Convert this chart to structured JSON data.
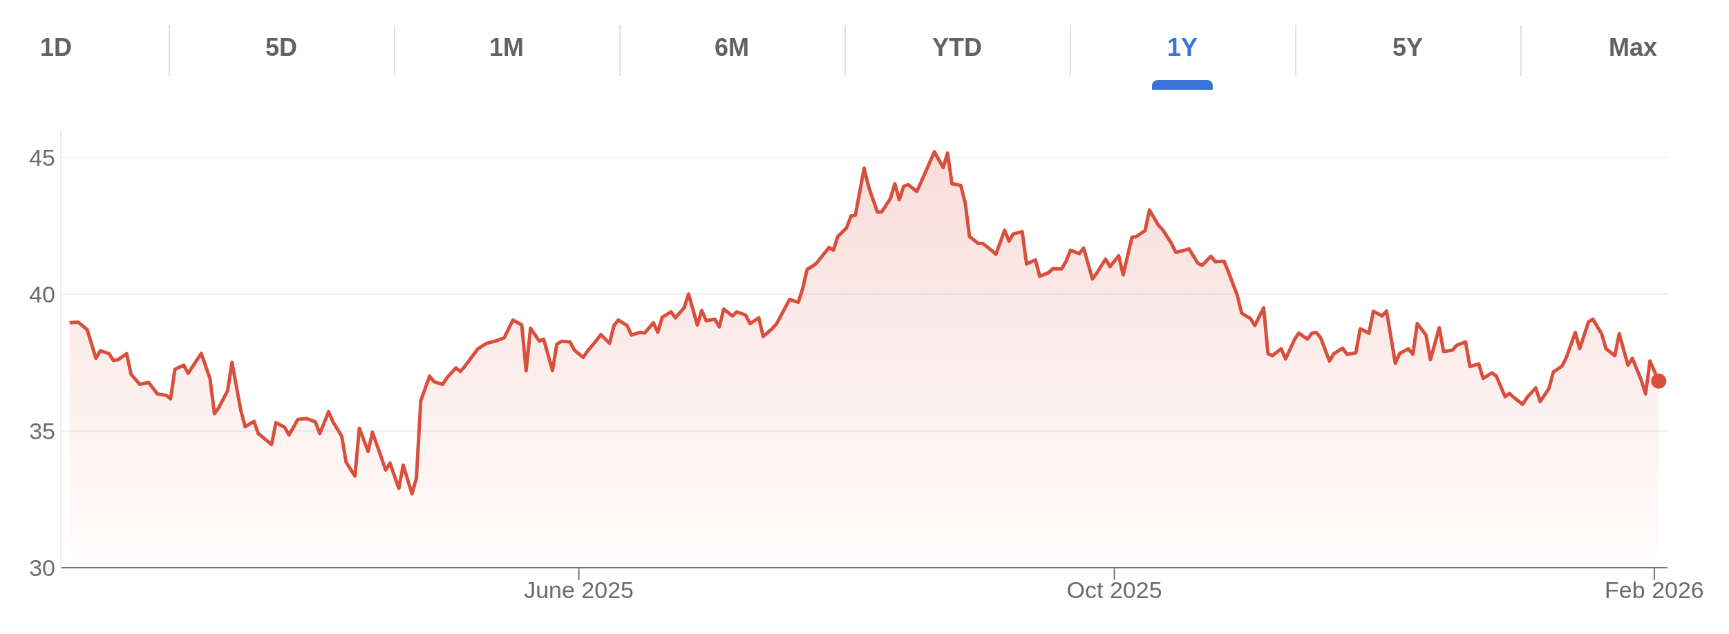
{
  "chart_data": {
    "type": "area",
    "annotations": [
      "1D",
      "5D",
      "1M",
      "6M",
      "YTD",
      "1Y",
      "5Y",
      "Max"
    ],
    "x": [
      "2025-02-05",
      "2025-02-07",
      "2025-02-09",
      "2025-02-11",
      "2025-02-12",
      "2025-02-14",
      "2025-02-15",
      "2025-02-16",
      "2025-02-18",
      "2025-02-19",
      "2025-02-21",
      "2025-02-23",
      "2025-02-25",
      "2025-02-27",
      "2025-02-28",
      "2025-03-01",
      "2025-03-03",
      "2025-03-04",
      "2025-03-07",
      "2025-03-09",
      "2025-03-10",
      "2025-03-11",
      "2025-03-13",
      "2025-03-14",
      "2025-03-16",
      "2025-03-17",
      "2025-03-19",
      "2025-03-20",
      "2025-03-21",
      "2025-03-23",
      "2025-03-24",
      "2025-03-26",
      "2025-03-27",
      "2025-03-29",
      "2025-03-31",
      "2025-04-02",
      "2025-04-03",
      "2025-04-05",
      "2025-04-06",
      "2025-04-08",
      "2025-04-09",
      "2025-04-11",
      "2025-04-12",
      "2025-04-14",
      "2025-04-15",
      "2025-04-18",
      "2025-04-19",
      "2025-04-21",
      "2025-04-22",
      "2025-04-24",
      "2025-04-25",
      "2025-04-26",
      "2025-04-28",
      "2025-04-29",
      "2025-05-01",
      "2025-05-02",
      "2025-05-04",
      "2025-05-05",
      "2025-05-06",
      "2025-05-09",
      "2025-05-11",
      "2025-05-13",
      "2025-05-15",
      "2025-05-17",
      "2025-05-19",
      "2025-05-20",
      "2025-05-21",
      "2025-05-23",
      "2025-05-24",
      "2025-05-26",
      "2025-05-27",
      "2025-05-28",
      "2025-05-30",
      "2025-05-31",
      "2025-06-02",
      "2025-06-03",
      "2025-06-05",
      "2025-06-06",
      "2025-06-08",
      "2025-06-09",
      "2025-06-10",
      "2025-06-12",
      "2025-06-13",
      "2025-06-15",
      "2025-06-16",
      "2025-06-18",
      "2025-06-19",
      "2025-06-20",
      "2025-06-22",
      "2025-06-23",
      "2025-06-25",
      "2025-06-26",
      "2025-06-28",
      "2025-06-29",
      "2025-06-30",
      "2025-07-02",
      "2025-07-03",
      "2025-07-04",
      "2025-07-06",
      "2025-07-07",
      "2025-07-09",
      "2025-07-10",
      "2025-07-12",
      "2025-07-13",
      "2025-07-15",
      "2025-07-16",
      "2025-07-18",
      "2025-07-19",
      "2025-07-21",
      "2025-07-22",
      "2025-07-23",
      "2025-07-25",
      "2025-07-26",
      "2025-07-28",
      "2025-07-29",
      "2025-07-30",
      "2025-08-01",
      "2025-08-02",
      "2025-08-03",
      "2025-08-05",
      "2025-08-06",
      "2025-08-08",
      "2025-08-09",
      "2025-08-11",
      "2025-08-12",
      "2025-08-13",
      "2025-08-14",
      "2025-08-15",
      "2025-08-17",
      "2025-08-18",
      "2025-08-21",
      "2025-08-23",
      "2025-08-24",
      "2025-08-25",
      "2025-08-27",
      "2025-08-28",
      "2025-08-29",
      "2025-08-31",
      "2025-09-01",
      "2025-09-03",
      "2025-09-04",
      "2025-09-06",
      "2025-09-07",
      "2025-09-08",
      "2025-09-10",
      "2025-09-11",
      "2025-09-13",
      "2025-09-14",
      "2025-09-16",
      "2025-09-17",
      "2025-09-19",
      "2025-09-20",
      "2025-09-21",
      "2025-09-23",
      "2025-09-24",
      "2025-09-26",
      "2025-09-27",
      "2025-09-29",
      "2025-09-30",
      "2025-10-02",
      "2025-10-03",
      "2025-10-05",
      "2025-10-06",
      "2025-10-08",
      "2025-10-09",
      "2025-10-11",
      "2025-10-12",
      "2025-10-14",
      "2025-10-15",
      "2025-10-17",
      "2025-10-18",
      "2025-10-20",
      "2025-10-21",
      "2025-10-23",
      "2025-10-24",
      "2025-10-26",
      "2025-10-27",
      "2025-10-29",
      "2025-10-30",
      "2025-11-01",
      "2025-11-02",
      "2025-11-04",
      "2025-11-05",
      "2025-11-06",
      "2025-11-08",
      "2025-11-09",
      "2025-11-11",
      "2025-11-12",
      "2025-11-14",
      "2025-11-15",
      "2025-11-16",
      "2025-11-17",
      "2025-11-19",
      "2025-11-20",
      "2025-11-22",
      "2025-11-23",
      "2025-11-25",
      "2025-11-26",
      "2025-11-28",
      "2025-11-29",
      "2025-12-01",
      "2025-12-02",
      "2025-12-04",
      "2025-12-05",
      "2025-12-07",
      "2025-12-08",
      "2025-12-09",
      "2025-12-11",
      "2025-12-12",
      "2025-12-14",
      "2025-12-15",
      "2025-12-17",
      "2025-12-18",
      "2025-12-20",
      "2025-12-21",
      "2025-12-23",
      "2025-12-24",
      "2025-12-26",
      "2025-12-27",
      "2025-12-29",
      "2025-12-30",
      "2025-12-31",
      "2026-01-02",
      "2026-01-03",
      "2026-01-05",
      "2026-01-06",
      "2026-01-08",
      "2026-01-09",
      "2026-01-11",
      "2026-01-12",
      "2026-01-14",
      "2026-01-15",
      "2026-01-17",
      "2026-01-18",
      "2026-01-20",
      "2026-01-21",
      "2026-01-23",
      "2026-01-24",
      "2026-01-26",
      "2026-01-27",
      "2026-01-29",
      "2026-01-30",
      "2026-01-31",
      "2026-02-02"
    ],
    "values": [
      38.95,
      38.97,
      38.7,
      37.65,
      37.93,
      37.82,
      37.57,
      37.6,
      37.82,
      37.07,
      36.7,
      36.77,
      36.35,
      36.3,
      36.17,
      37.25,
      37.4,
      37.1,
      37.83,
      36.9,
      35.63,
      35.85,
      36.47,
      37.5,
      35.75,
      35.15,
      35.35,
      34.9,
      34.77,
      34.5,
      35.3,
      35.13,
      34.85,
      35.42,
      35.45,
      35.33,
      34.9,
      35.7,
      35.33,
      34.8,
      33.85,
      33.35,
      35.1,
      34.25,
      34.95,
      33.57,
      33.82,
      32.9,
      33.75,
      32.7,
      33.27,
      36.1,
      37.0,
      36.8,
      36.7,
      36.95,
      37.3,
      37.17,
      37.35,
      38.0,
      38.2,
      38.28,
      38.4,
      39.05,
      38.87,
      37.2,
      38.75,
      38.28,
      38.35,
      37.2,
      38.17,
      38.27,
      38.25,
      37.95,
      37.68,
      37.92,
      38.3,
      38.52,
      38.2,
      38.85,
      39.05,
      38.85,
      38.5,
      38.6,
      38.58,
      38.95,
      38.6,
      39.15,
      39.35,
      39.13,
      39.5,
      40.0,
      38.87,
      39.4,
      39.03,
      39.08,
      38.8,
      39.45,
      39.2,
      39.35,
      39.23,
      38.92,
      39.13,
      38.45,
      38.73,
      38.9,
      39.5,
      39.8,
      39.7,
      40.2,
      40.9,
      41.1,
      41.3,
      41.7,
      41.6,
      42.1,
      42.42,
      42.85,
      42.88,
      44.6,
      43.93,
      43.0,
      43.0,
      43.5,
      44.03,
      43.45,
      43.93,
      44.0,
      43.75,
      44.1,
      45.2,
      44.62,
      45.15,
      44.03,
      43.97,
      43.35,
      42.1,
      41.85,
      41.85,
      41.6,
      41.45,
      42.33,
      41.93,
      42.2,
      42.28,
      41.1,
      41.25,
      40.65,
      40.78,
      40.93,
      40.92,
      41.2,
      41.6,
      41.48,
      41.68,
      40.55,
      40.77,
      41.28,
      41.0,
      41.4,
      40.7,
      42.07,
      42.1,
      42.32,
      43.07,
      42.52,
      42.35,
      41.85,
      41.52,
      41.6,
      41.65,
      41.13,
      41.05,
      41.38,
      41.18,
      41.2,
      40.8,
      39.95,
      39.3,
      39.1,
      38.85,
      39.5,
      37.82,
      37.75,
      38.0,
      37.63,
      38.33,
      38.57,
      38.35,
      38.57,
      38.6,
      38.4,
      37.55,
      37.82,
      38.02,
      37.8,
      37.85,
      38.73,
      38.57,
      39.37,
      39.2,
      39.38,
      37.47,
      37.83,
      38.0,
      37.8,
      38.92,
      38.5,
      37.6,
      38.77,
      37.9,
      37.95,
      38.13,
      38.25,
      37.35,
      37.45,
      36.92,
      37.12,
      37.0,
      36.25,
      36.37,
      36.22,
      35.97,
      36.22,
      36.57,
      36.07,
      36.55,
      37.15,
      37.37,
      37.7,
      38.6,
      38.0,
      38.98,
      39.08,
      38.55,
      38.0,
      37.75,
      38.55,
      37.4,
      37.65,
      36.87,
      36.35,
      37.55,
      36.82
    ],
    "color": "#d94f3d",
    "xlim": [
      "2025-02-03",
      "2026-02-04"
    ],
    "xticks": [
      {
        "value": "2025-06-01",
        "label": "June 2025"
      },
      {
        "value": "2025-10-01",
        "label": "Oct 2025"
      },
      {
        "value": "2026-02-01",
        "label": "Feb 2026"
      }
    ],
    "ylim": [
      30,
      46
    ],
    "yticks": [
      30,
      35,
      40,
      45
    ],
    "grid": "y",
    "legend": false
  }
}
